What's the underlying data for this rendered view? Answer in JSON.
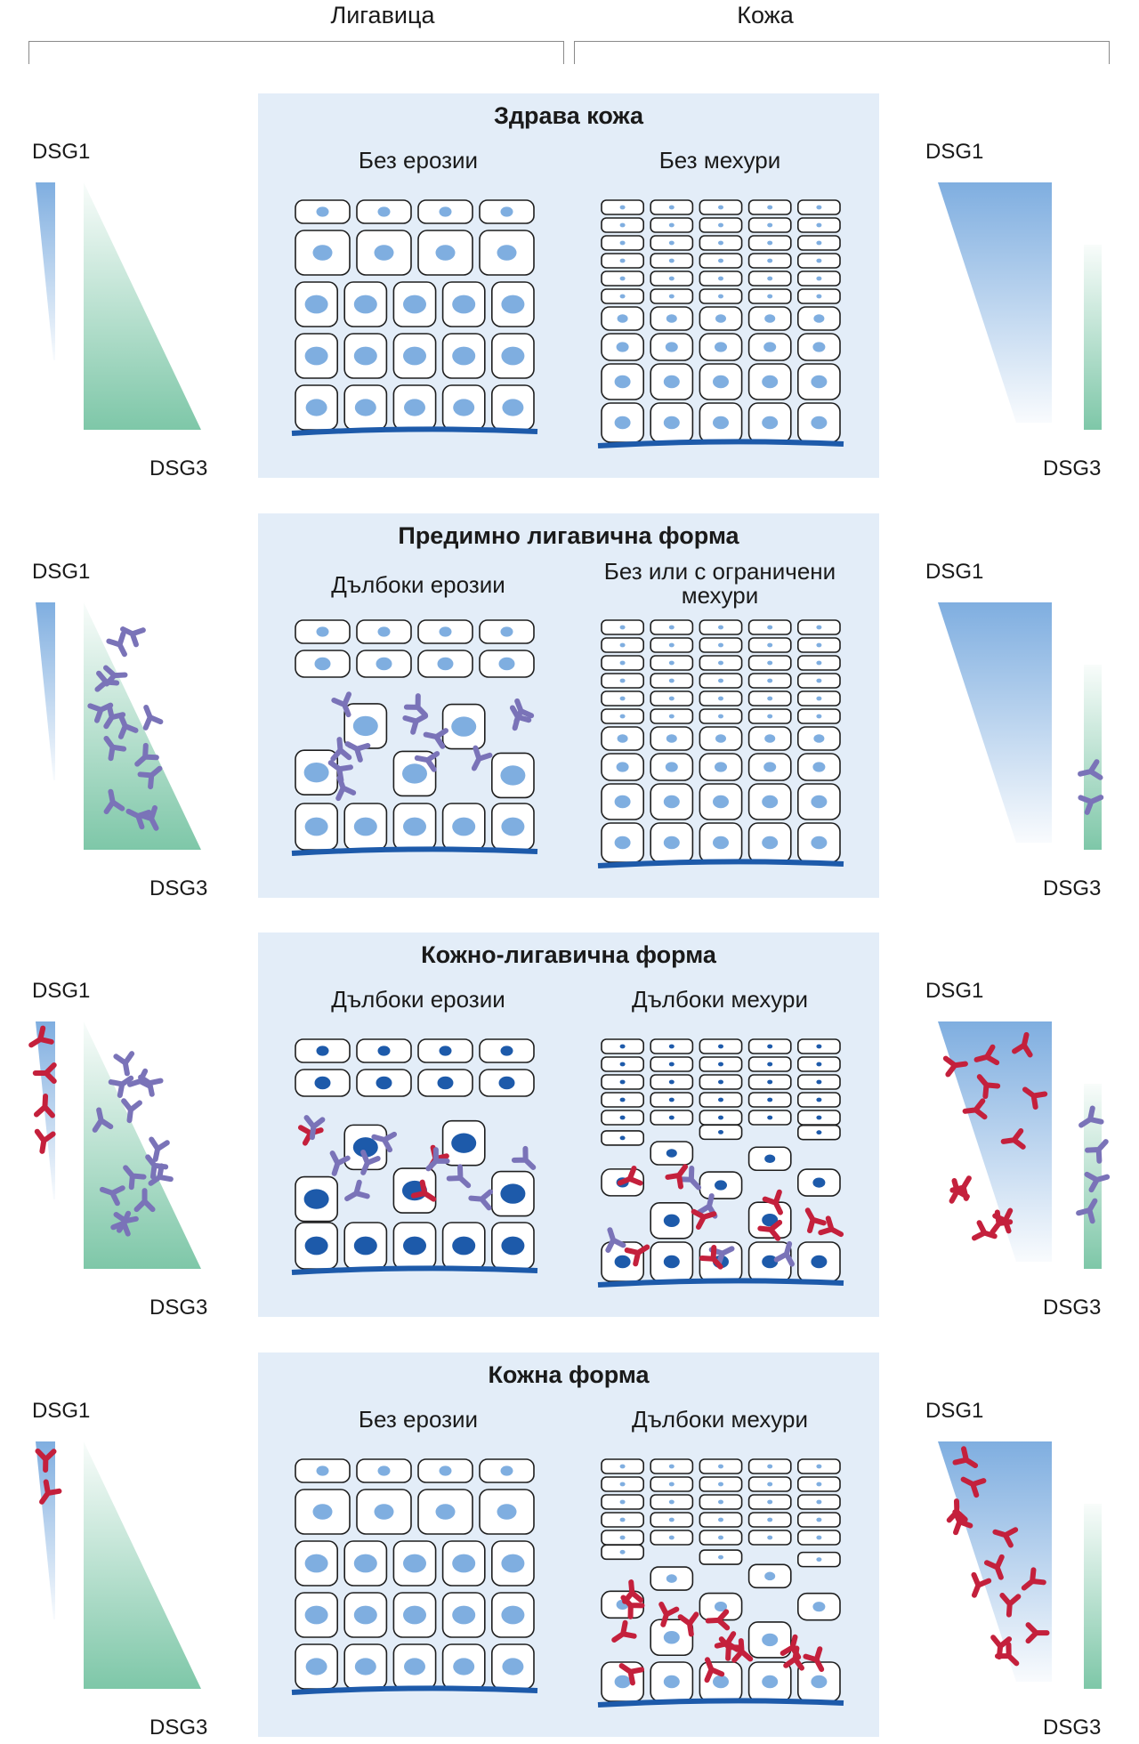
{
  "columns": {
    "left": "Лигавица",
    "right": "Кожа"
  },
  "legend_labels": {
    "dsg1": "DSG1",
    "dsg3": "DSG3"
  },
  "colors": {
    "panel_bg": "#e3edf8",
    "dsg1_blue": "#7faee0",
    "dsg3_green": "#7ec7a8",
    "membrane": "#1d5aaa",
    "anti_dsg3": "#7a73b8",
    "anti_dsg1": "#c4203c"
  },
  "rows": [
    {
      "title": "Здрава кожа",
      "left_sub": "Без ерозии",
      "right_sub": "Без мехури",
      "left_state": "intact",
      "right_state": "intact",
      "mucosa_ab": {
        "dsg1": 0,
        "dsg3": 0
      },
      "skin_ab": {
        "dsg1": 0,
        "dsg3": 0
      }
    },
    {
      "title": "Предимно лигавична форма",
      "left_sub": "Дълбоки ерозии",
      "right_sub": "Без или с ограничени мехури",
      "left_state": "blister",
      "right_state": "intact",
      "mucosa_ab": {
        "dsg1": 0,
        "dsg3": 14
      },
      "skin_ab": {
        "dsg1": 0,
        "dsg3": 2
      }
    },
    {
      "title": "Кожно-лигавична форма",
      "left_sub": "Дълбоки ерозии",
      "right_sub": "Дълбоки мехури",
      "left_state": "blister",
      "right_state": "blister",
      "mucosa_ab": {
        "dsg1": 4,
        "dsg3": 14
      },
      "skin_ab": {
        "dsg1": 12,
        "dsg3": 4
      }
    },
    {
      "title": "Кожна форма",
      "left_sub": "Без ерозии",
      "right_sub": "Дълбоки мехури",
      "left_state": "intact",
      "right_state": "blister",
      "mucosa_ab": {
        "dsg1": 2,
        "dsg3": 0
      },
      "skin_ab": {
        "dsg1": 12,
        "dsg3": 0
      }
    }
  ]
}
